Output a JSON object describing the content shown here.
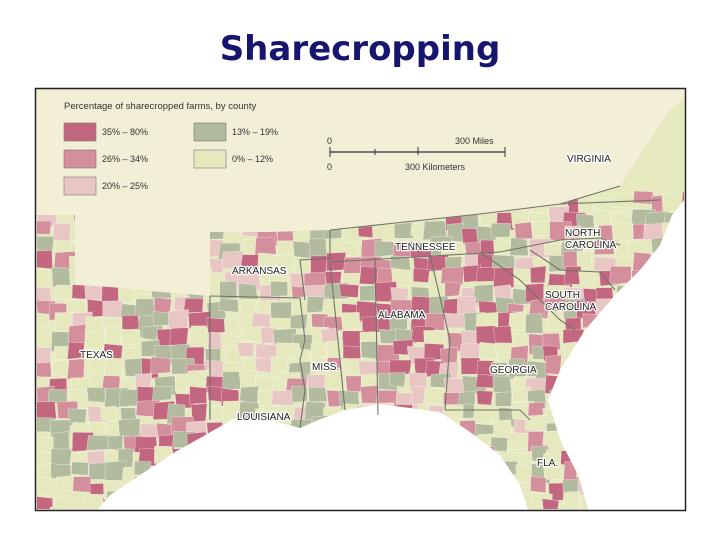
{
  "title": "Sharecropping",
  "map": {
    "legend": {
      "title": "Percentage of sharecropped farms, by county",
      "items": [
        {
          "label": "35% – 80%",
          "color": "#c2677f"
        },
        {
          "label": "13% – 19%",
          "color": "#b3bb9f"
        },
        {
          "label": "26% – 34%",
          "color": "#d48f9c"
        },
        {
          "label": "0% – 12%",
          "color": "#e5e9bd"
        },
        {
          "label": "20% – 25%",
          "color": "#e8c6c4"
        }
      ]
    },
    "scale": {
      "miles_start": "0",
      "miles": "300 Miles",
      "km_start": "0",
      "kilometers": "300 Kilometers"
    },
    "labels": [
      {
        "lines": [
          "VIRGINIA"
        ]
      },
      {
        "lines": [
          "NORTH",
          "CAROLINA"
        ]
      },
      {
        "lines": [
          "TENNESSEE"
        ]
      },
      {
        "lines": [
          "ARKANSAS"
        ]
      },
      {
        "lines": [
          "SOUTH",
          "CAROLINA"
        ]
      },
      {
        "lines": [
          "ALABAMA"
        ]
      },
      {
        "lines": [
          "TEXAS"
        ]
      },
      {
        "lines": [
          "MISS."
        ]
      },
      {
        "lines": [
          "GEORGIA"
        ]
      },
      {
        "lines": [
          "LOUISIANA"
        ]
      },
      {
        "lines": [
          "FLA."
        ]
      }
    ]
  }
}
